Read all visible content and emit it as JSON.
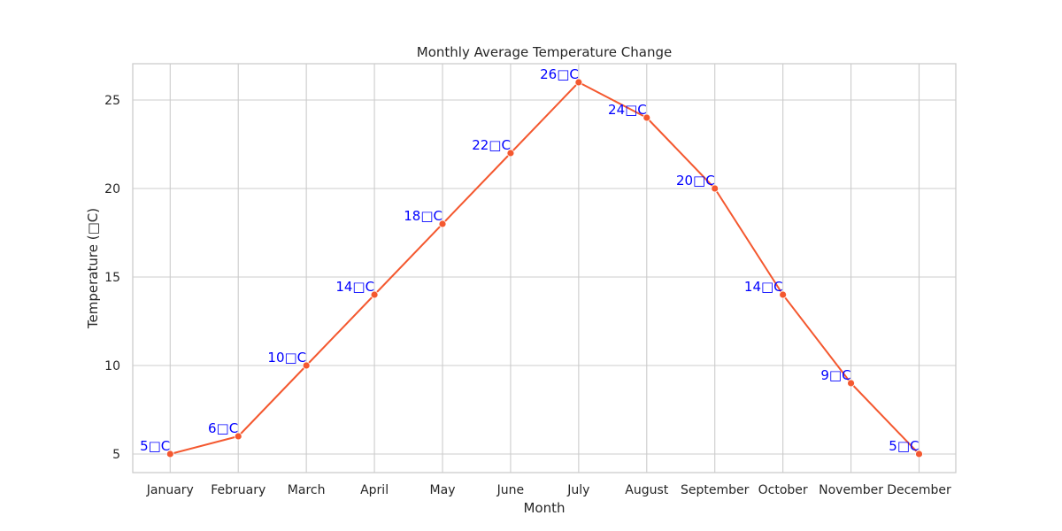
{
  "chart_data": {
    "type": "line",
    "title": "Monthly Average Temperature Change",
    "xlabel": "Month",
    "ylabel": "Temperature (□C)",
    "categories": [
      "January",
      "February",
      "March",
      "April",
      "May",
      "June",
      "July",
      "August",
      "September",
      "October",
      "November",
      "December"
    ],
    "series": [
      {
        "values": [
          5,
          6,
          10,
          14,
          18,
          22,
          26,
          24,
          20,
          14,
          9,
          5
        ],
        "labels": [
          "5□C",
          "6□C",
          "10□C",
          "14□C",
          "18□C",
          "22□C",
          "26□C",
          "24□C",
          "20□C",
          "14□C",
          "9□C",
          "5□C"
        ],
        "color": "#f4582f"
      }
    ],
    "yticks": [
      5,
      10,
      15,
      20,
      25
    ],
    "ylim": [
      3.95,
      27.05
    ],
    "grid": true,
    "data_label_color": "#0000ff"
  }
}
